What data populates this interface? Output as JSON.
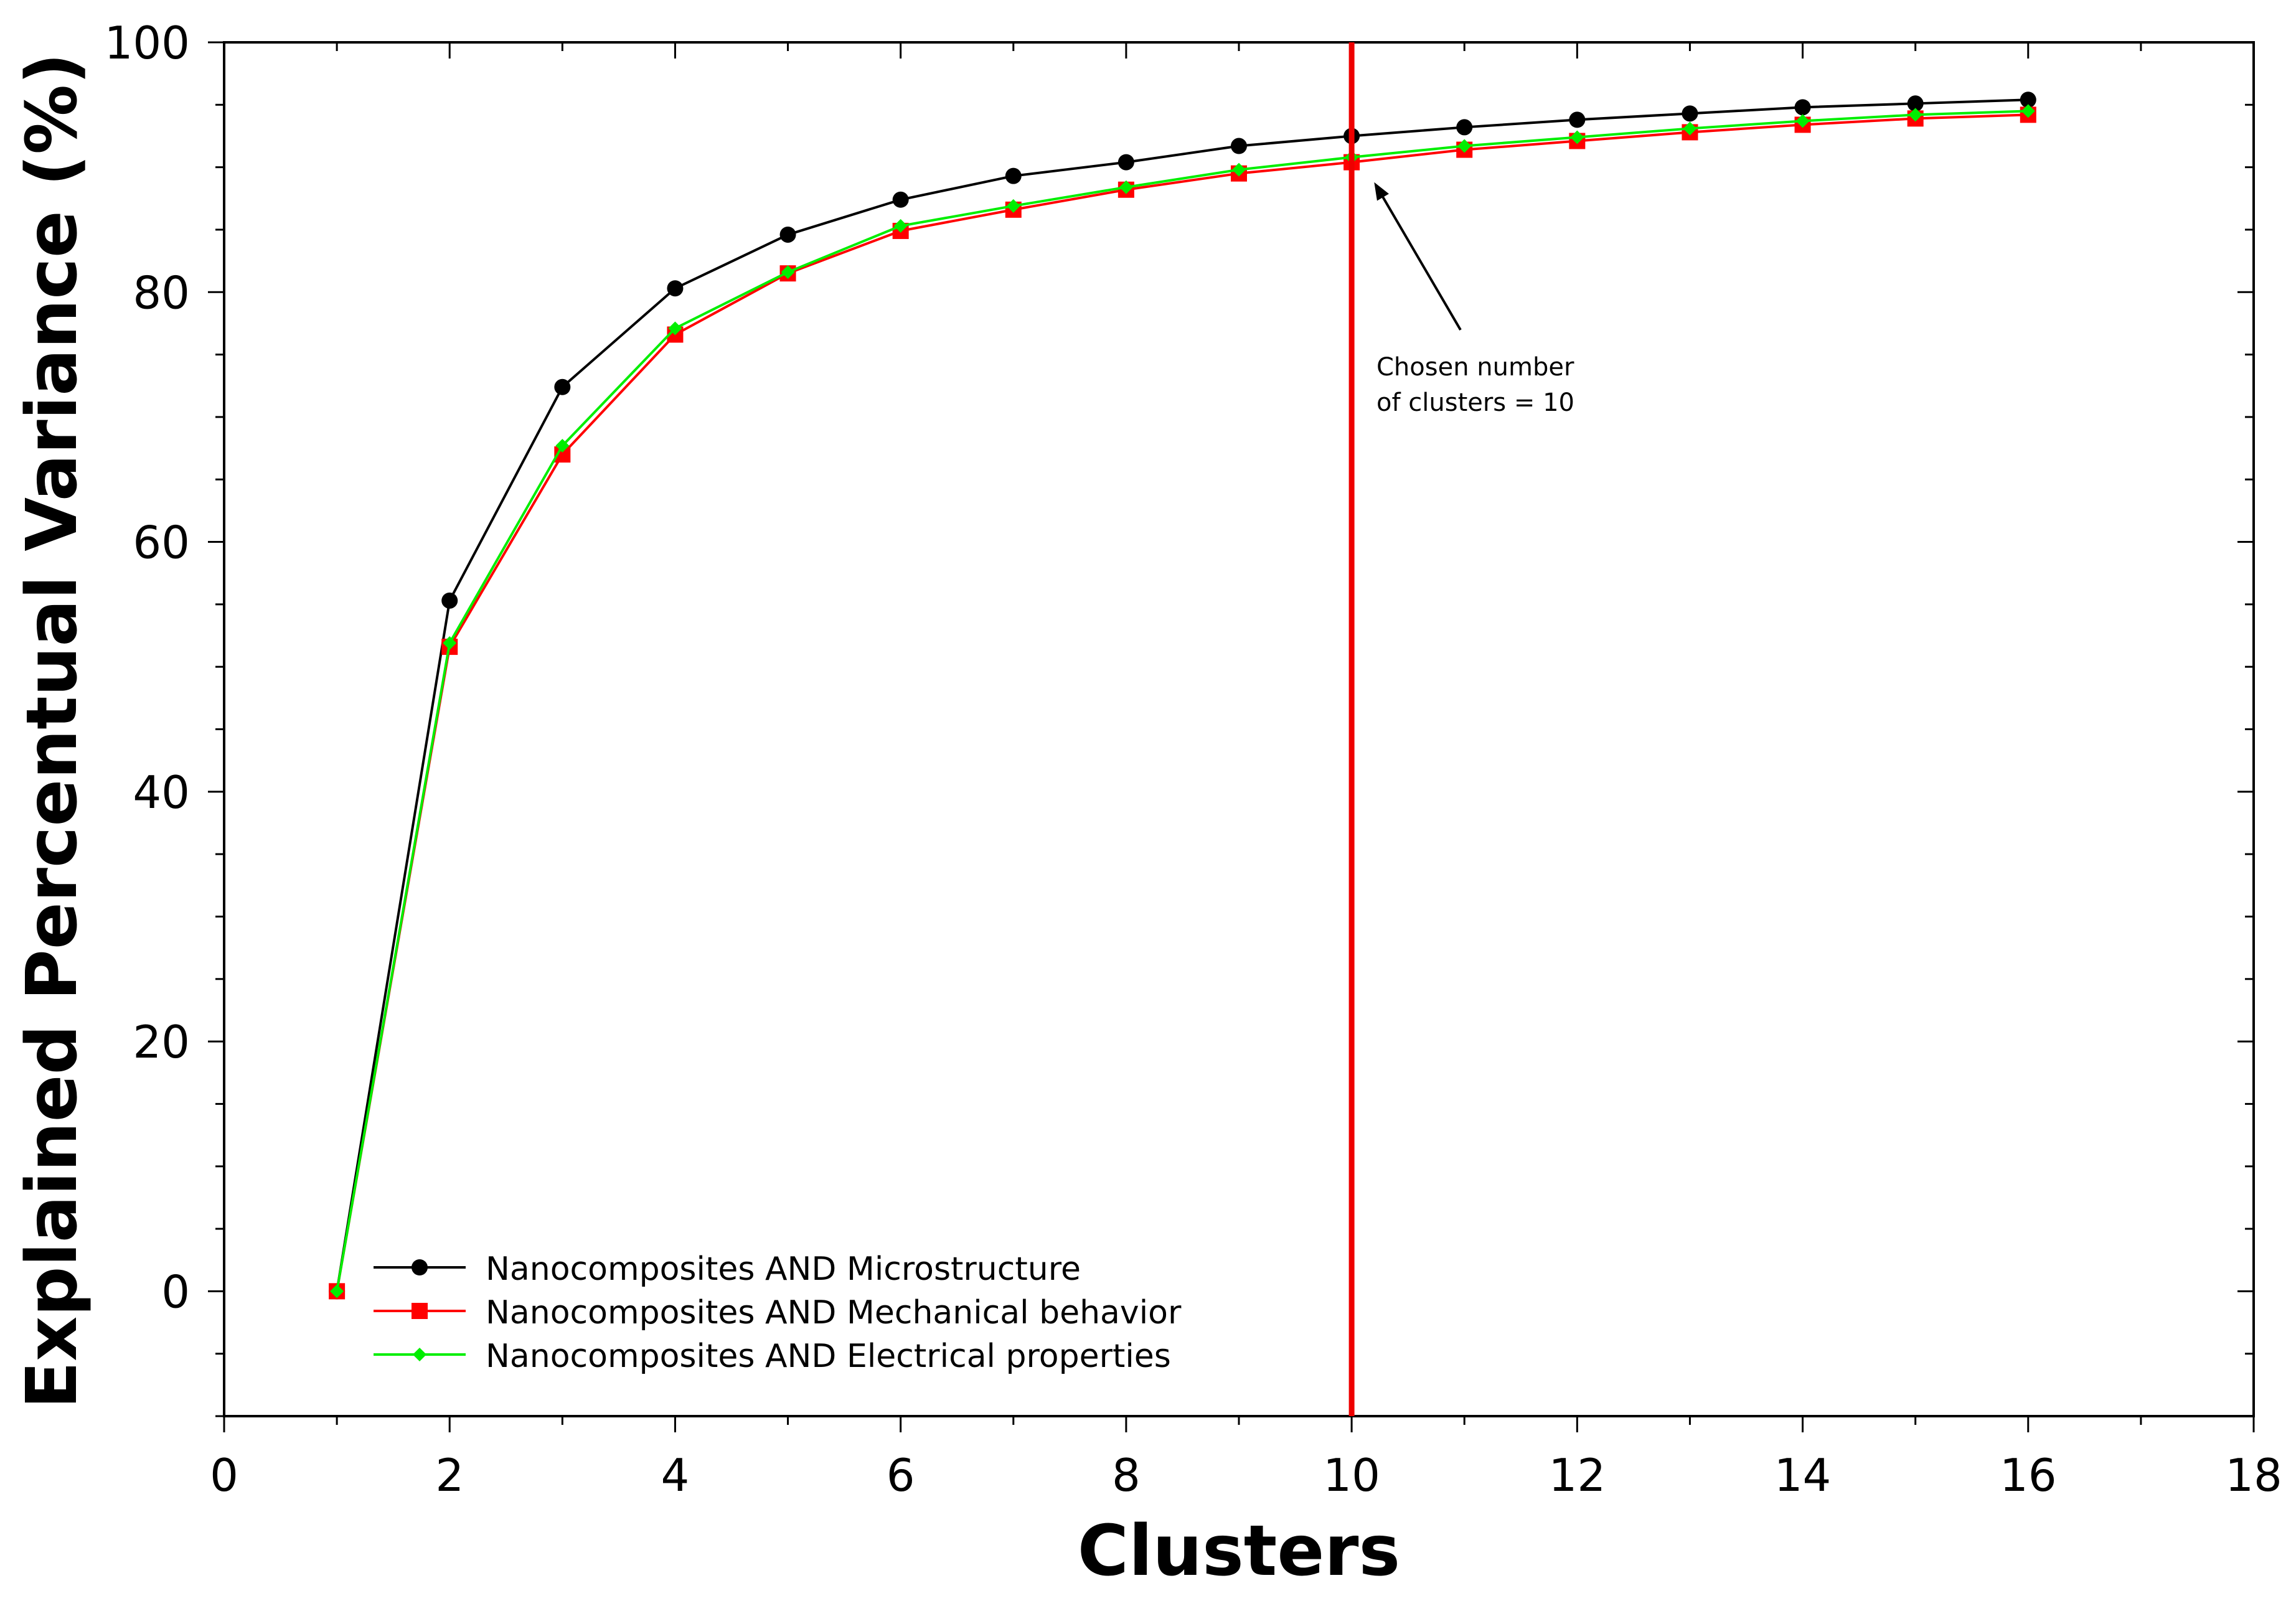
{
  "chart_data": {
    "type": "line",
    "xlabel": "Clusters",
    "ylabel": "Explained Percentual Variance (%)",
    "xlim": [
      0,
      18
    ],
    "ylim": [
      -10,
      100
    ],
    "xticks": [
      0,
      2,
      4,
      6,
      8,
      10,
      12,
      14,
      16,
      18
    ],
    "yticks": [
      0,
      20,
      40,
      60,
      80,
      100
    ],
    "grid": false,
    "legend_position": "bottom-left",
    "x": [
      1,
      2,
      3,
      4,
      5,
      6,
      7,
      8,
      9,
      10,
      11,
      12,
      13,
      14,
      15,
      16
    ],
    "series": [
      {
        "name": "Nanocomposites AND Microstructure",
        "color": "#000000",
        "marker": "circle",
        "values": [
          0,
          55.3,
          72.4,
          80.3,
          84.6,
          87.4,
          89.3,
          90.4,
          91.7,
          92.5,
          93.2,
          93.8,
          94.3,
          94.8,
          95.1,
          95.4
        ]
      },
      {
        "name": "Nanocomposites AND Mechanical behavior",
        "color": "#ff0000",
        "marker": "square",
        "values": [
          0,
          51.6,
          67.0,
          76.6,
          81.5,
          84.9,
          86.6,
          88.2,
          89.5,
          90.4,
          91.4,
          92.1,
          92.8,
          93.4,
          93.9,
          94.2
        ]
      },
      {
        "name": "Nanocomposites AND Electrical properties",
        "color": "#00ee00",
        "marker": "diamond",
        "values": [
          0,
          51.9,
          67.7,
          77.1,
          81.6,
          85.3,
          86.9,
          88.4,
          89.8,
          90.8,
          91.7,
          92.4,
          93.1,
          93.7,
          94.2,
          94.5
        ]
      }
    ],
    "vertical_line": {
      "x": 10,
      "color": "#ee0000"
    },
    "annotation": {
      "lines": [
        "Chosen number",
        "of clusters = 10"
      ],
      "points_to": {
        "x": 10.2,
        "y": 88.8
      }
    }
  }
}
